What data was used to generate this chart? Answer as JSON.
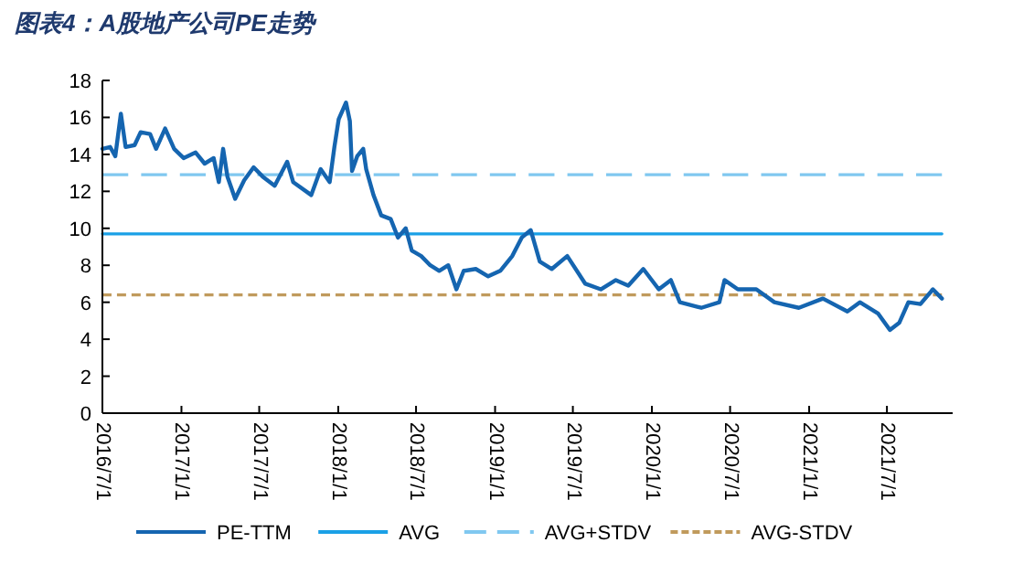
{
  "chart_data": {
    "type": "line",
    "title": "图表4：A股地产公司PE走势",
    "xlim": [
      "2016-07-01",
      "2021-12-01"
    ],
    "xticks": [
      {
        "value": "2016-07-01",
        "label": "2016/7/1"
      },
      {
        "value": "2017-01-01",
        "label": "2017/1/1"
      },
      {
        "value": "2017-07-01",
        "label": "2017/7/1"
      },
      {
        "value": "2018-01-01",
        "label": "2018/1/1"
      },
      {
        "value": "2018-07-01",
        "label": "2018/7/1"
      },
      {
        "value": "2019-01-01",
        "label": "2019/1/1"
      },
      {
        "value": "2019-07-01",
        "label": "2019/7/1"
      },
      {
        "value": "2020-01-01",
        "label": "2020/1/1"
      },
      {
        "value": "2020-07-01",
        "label": "2020/7/1"
      },
      {
        "value": "2021-01-01",
        "label": "2021/1/1"
      },
      {
        "value": "2021-07-01",
        "label": "2021/7/1"
      }
    ],
    "ylim": [
      0,
      18
    ],
    "yticks": [
      0,
      2,
      4,
      6,
      8,
      10,
      12,
      14,
      16,
      18
    ],
    "grid": false,
    "legend": "bottom",
    "marker": "none",
    "series": [
      {
        "name": "PE-TTM",
        "color": "#1565b0",
        "line_style": "solid",
        "x": [
          "2016-07-01",
          "2016-07-19",
          "2016-07-31",
          "2016-08-13",
          "2016-08-24",
          "2016-09-14",
          "2016-09-28",
          "2016-10-20",
          "2016-11-03",
          "2016-11-24",
          "2016-12-15",
          "2017-01-06",
          "2017-02-03",
          "2017-02-24",
          "2017-03-17",
          "2017-03-29",
          "2017-04-08",
          "2017-04-18",
          "2017-05-06",
          "2017-05-27",
          "2017-06-18",
          "2017-07-09",
          "2017-08-06",
          "2017-09-04",
          "2017-09-18",
          "2017-10-30",
          "2017-11-21",
          "2017-12-12",
          "2017-12-23",
          "2018-01-02",
          "2018-01-19",
          "2018-01-28",
          "2018-02-02",
          "2018-02-14",
          "2018-02-28",
          "2018-03-07",
          "2018-03-24",
          "2018-04-11",
          "2018-05-03",
          "2018-05-20",
          "2018-06-07",
          "2018-06-21",
          "2018-07-13",
          "2018-08-03",
          "2018-08-24",
          "2018-09-14",
          "2018-10-03",
          "2018-10-20",
          "2018-11-17",
          "2018-12-16",
          "2019-01-13",
          "2019-02-10",
          "2019-03-04",
          "2019-03-25",
          "2019-04-15",
          "2019-05-13",
          "2019-06-18",
          "2019-07-30",
          "2019-09-04",
          "2019-10-09",
          "2019-11-07",
          "2019-12-12",
          "2020-01-17",
          "2020-02-14",
          "2020-03-06",
          "2020-04-25",
          "2020-06-06",
          "2020-06-18",
          "2020-07-19",
          "2020-08-31",
          "2020-10-12",
          "2020-12-08",
          "2021-02-02",
          "2021-03-31",
          "2021-04-29",
          "2021-06-10",
          "2021-07-08",
          "2021-07-30",
          "2021-08-20",
          "2021-09-17",
          "2021-10-16",
          "2021-11-06"
        ],
        "values": [
          14.3,
          14.4,
          13.9,
          16.2,
          14.4,
          14.5,
          15.2,
          15.1,
          14.3,
          15.4,
          14.3,
          13.8,
          14.1,
          13.5,
          13.8,
          12.5,
          14.3,
          12.8,
          11.6,
          12.6,
          13.3,
          12.8,
          12.3,
          13.6,
          12.5,
          11.8,
          13.2,
          12.5,
          14.4,
          15.9,
          16.8,
          15.8,
          13.1,
          13.9,
          14.3,
          13.2,
          11.8,
          10.7,
          10.5,
          9.5,
          10.0,
          8.8,
          8.5,
          8.0,
          7.7,
          8.0,
          6.7,
          7.7,
          7.8,
          7.4,
          7.7,
          8.5,
          9.5,
          9.9,
          8.2,
          7.8,
          8.5,
          7.0,
          6.7,
          7.2,
          6.9,
          7.8,
          6.7,
          7.2,
          6.0,
          5.7,
          6.0,
          7.2,
          6.7,
          6.7,
          6.0,
          5.7,
          6.2,
          5.5,
          6.0,
          5.4,
          4.5,
          4.9,
          6.0,
          5.9,
          6.7,
          6.2
        ]
      },
      {
        "name": "AVG",
        "color": "#1aa0e6",
        "line_style": "solid",
        "x": [
          "2016-07-01",
          "2021-11-06"
        ],
        "values": [
          9.7,
          9.7
        ]
      },
      {
        "name": "AVG+STDV",
        "color": "#80c8f0",
        "line_style": "dashed",
        "x": [
          "2016-07-01",
          "2021-11-06"
        ],
        "values": [
          12.9,
          12.9
        ]
      },
      {
        "name": "AVG-STDV",
        "color": "#c09a5c",
        "line_style": "dotted",
        "x": [
          "2016-07-01",
          "2021-11-06"
        ],
        "values": [
          6.4,
          6.4
        ]
      }
    ]
  }
}
